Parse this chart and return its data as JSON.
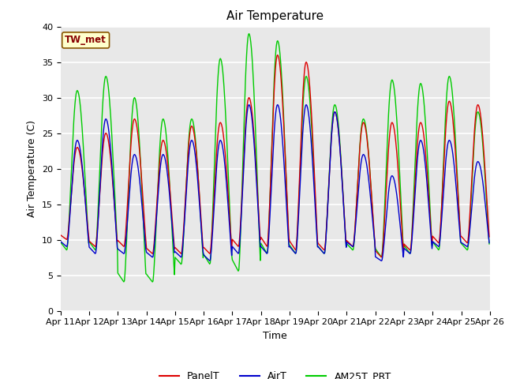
{
  "title": "Air Temperature",
  "ylabel": "Air Temperature (C)",
  "xlabel": "Time",
  "annotation": "TW_met",
  "legend": [
    "PanelT",
    "AirT",
    "AM25T_PRT"
  ],
  "legend_colors": [
    "#dd0000",
    "#0000cc",
    "#00cc00"
  ],
  "ylim": [
    0,
    40
  ],
  "yticks": [
    0,
    5,
    10,
    15,
    20,
    25,
    30,
    35,
    40
  ],
  "xtick_labels": [
    "Apr 11",
    "Apr 12",
    "Apr 13",
    "Apr 14",
    "Apr 15",
    "Apr 16",
    "Apr 17",
    "Apr 18",
    "Apr 19",
    "Apr 20",
    "Apr 21",
    "Apr 22",
    "Apr 23",
    "Apr 24",
    "Apr 25",
    "Apr 26"
  ],
  "bg_color": "#e8e8e8",
  "fig_color": "#ffffff",
  "title_fontsize": 11,
  "axis_fontsize": 9,
  "tick_fontsize": 8,
  "panel_peaks": [
    23.0,
    25.0,
    27.0,
    24.0,
    26.0,
    26.5,
    30.0,
    36.0,
    35.0,
    28.0,
    26.5,
    26.5,
    26.5,
    29.5,
    29.0
  ],
  "panel_mins": [
    10.0,
    9.0,
    9.0,
    8.0,
    8.0,
    8.0,
    9.0,
    9.0,
    8.5,
    8.5,
    9.0,
    7.5,
    8.5,
    9.5,
    9.5
  ],
  "air_peaks": [
    24.0,
    27.0,
    22.0,
    22.0,
    24.0,
    24.0,
    29.0,
    29.0,
    29.0,
    28.0,
    22.0,
    19.0,
    24.0,
    24.0,
    21.0
  ],
  "air_mins": [
    9.0,
    8.0,
    8.0,
    7.5,
    7.5,
    7.0,
    8.0,
    8.0,
    8.0,
    8.0,
    9.0,
    7.0,
    8.0,
    9.0,
    9.0
  ],
  "am25_peaks": [
    31.0,
    33.0,
    30.0,
    27.0,
    27.0,
    35.5,
    39.0,
    38.0,
    33.0,
    29.0,
    27.0,
    32.5,
    32.0,
    33.0,
    28.0
  ],
  "am25_mins": [
    8.5,
    8.5,
    4.0,
    4.0,
    6.5,
    6.5,
    5.5,
    8.0,
    8.0,
    8.0,
    8.5,
    7.5,
    8.0,
    8.5,
    8.5
  ],
  "n_per_day": 48
}
